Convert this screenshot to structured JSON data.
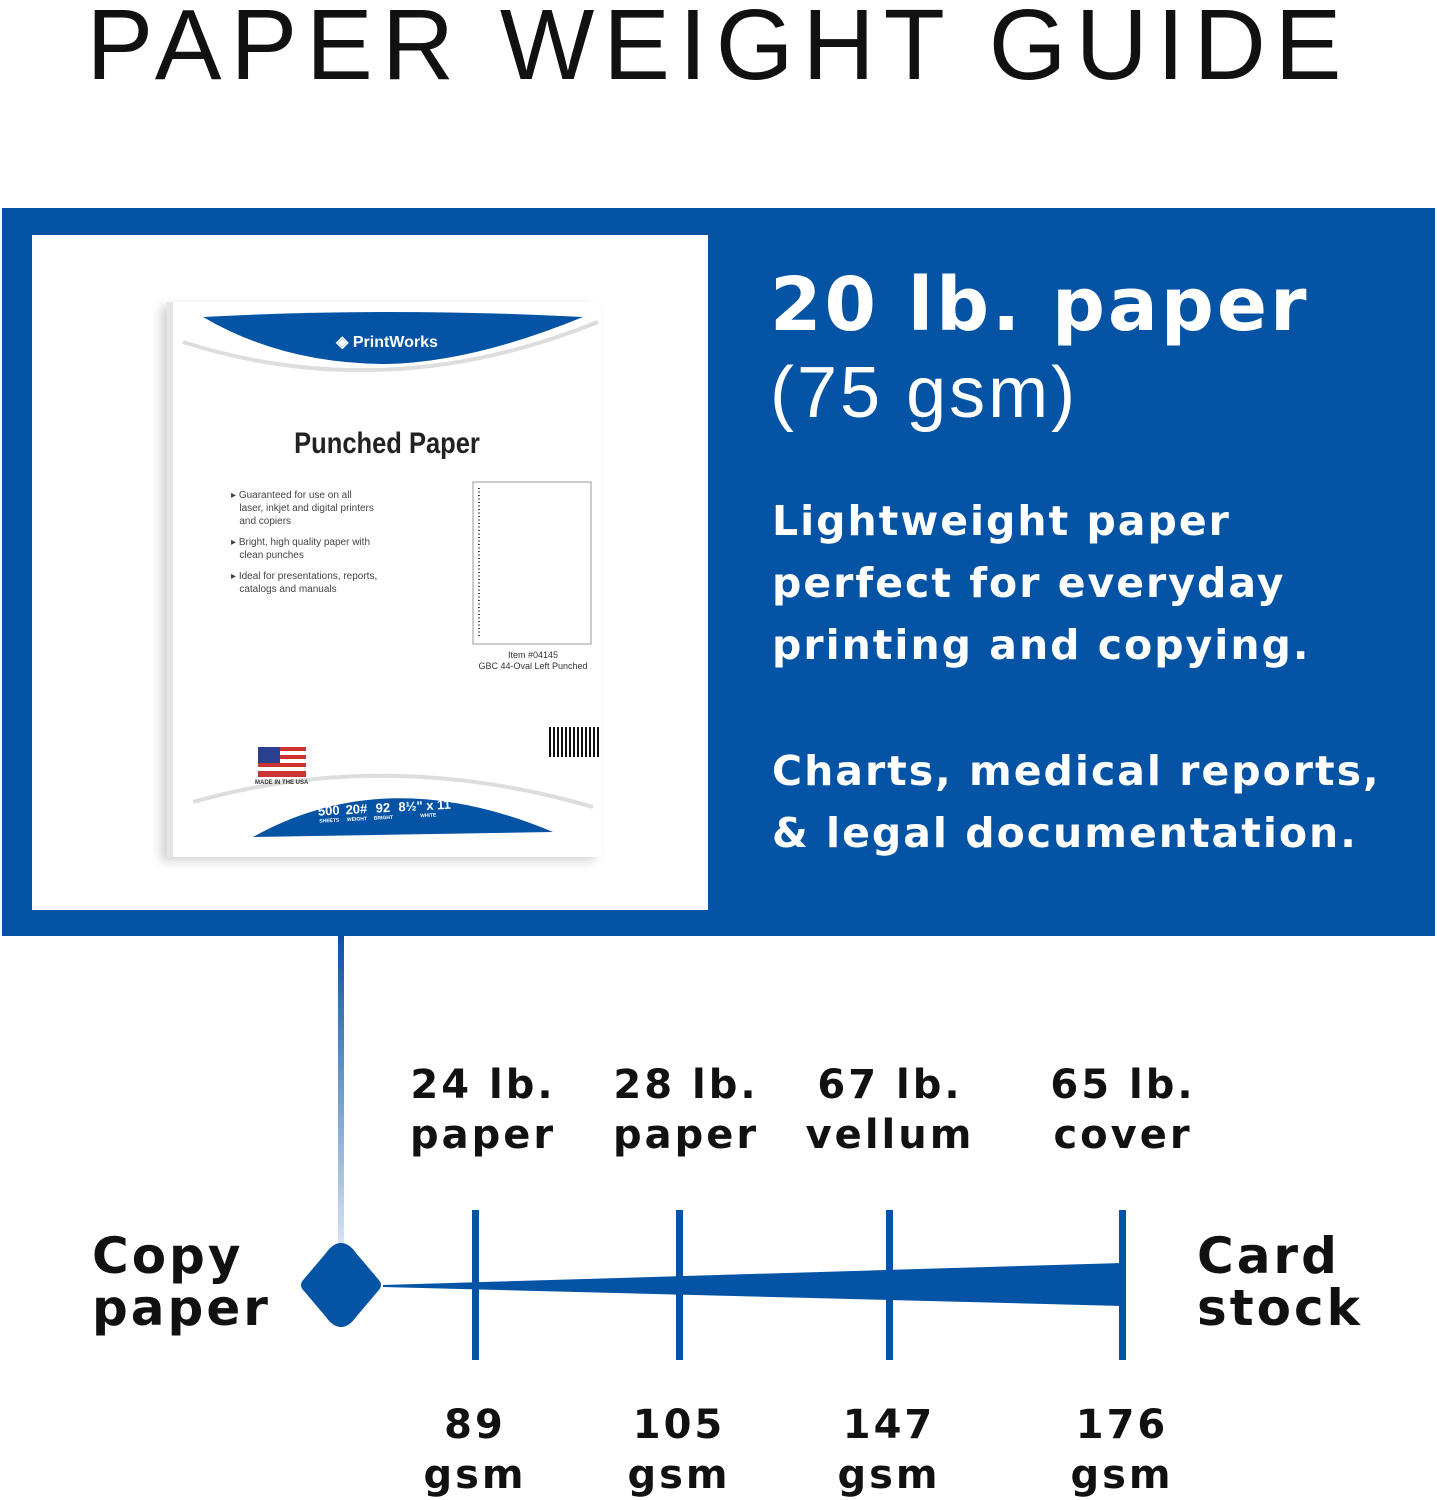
{
  "title": "PAPER WEIGHT GUIDE",
  "colors": {
    "brand_blue": "#0553a5",
    "white": "#ffffff",
    "text": "#111111"
  },
  "feature": {
    "heading": "20 lb. paper",
    "subheading": "(75 gsm)",
    "description_lines": [
      "Lightweight paper",
      "perfect for everyday",
      "printing and copying."
    ],
    "uses_lines": [
      "Charts, medical reports,",
      "& legal documentation."
    ]
  },
  "product": {
    "brand": "PrintWorks",
    "name": "Punched Paper",
    "bullets": [
      [
        "Guaranteed for use on all",
        "laser, inkjet and digital printers",
        "and copiers"
      ],
      [
        "Bright, high quality paper with",
        "clean punches"
      ],
      [
        "Ideal for presentations, reports,",
        "catalogs and manuals"
      ]
    ],
    "item_number": "Item #04145",
    "punch_type": "GBC 44-Oval Left Punched",
    "made_in": "MADE IN THE USA",
    "specs": [
      {
        "value": "500",
        "label": "SHEETS"
      },
      {
        "value": "20#",
        "label": "WEIGHT"
      },
      {
        "value": "92",
        "label": "BRIGHT"
      },
      {
        "value": "8½\" x 11\"",
        "label": "WHITE"
      }
    ]
  },
  "scale": {
    "start_label": [
      "Copy",
      "paper"
    ],
    "end_label": [
      "Card",
      "stock"
    ],
    "marks": [
      {
        "name": [
          "24 lb.",
          "paper"
        ],
        "gsm": [
          "89",
          "gsm"
        ]
      },
      {
        "name": [
          "28 lb.",
          "paper"
        ],
        "gsm": [
          "105",
          "gsm"
        ]
      },
      {
        "name": [
          "67 lb.",
          "vellum"
        ],
        "gsm": [
          "147",
          "gsm"
        ]
      },
      {
        "name": [
          "65 lb.",
          "cover"
        ],
        "gsm": [
          "176",
          "gsm"
        ]
      }
    ]
  }
}
